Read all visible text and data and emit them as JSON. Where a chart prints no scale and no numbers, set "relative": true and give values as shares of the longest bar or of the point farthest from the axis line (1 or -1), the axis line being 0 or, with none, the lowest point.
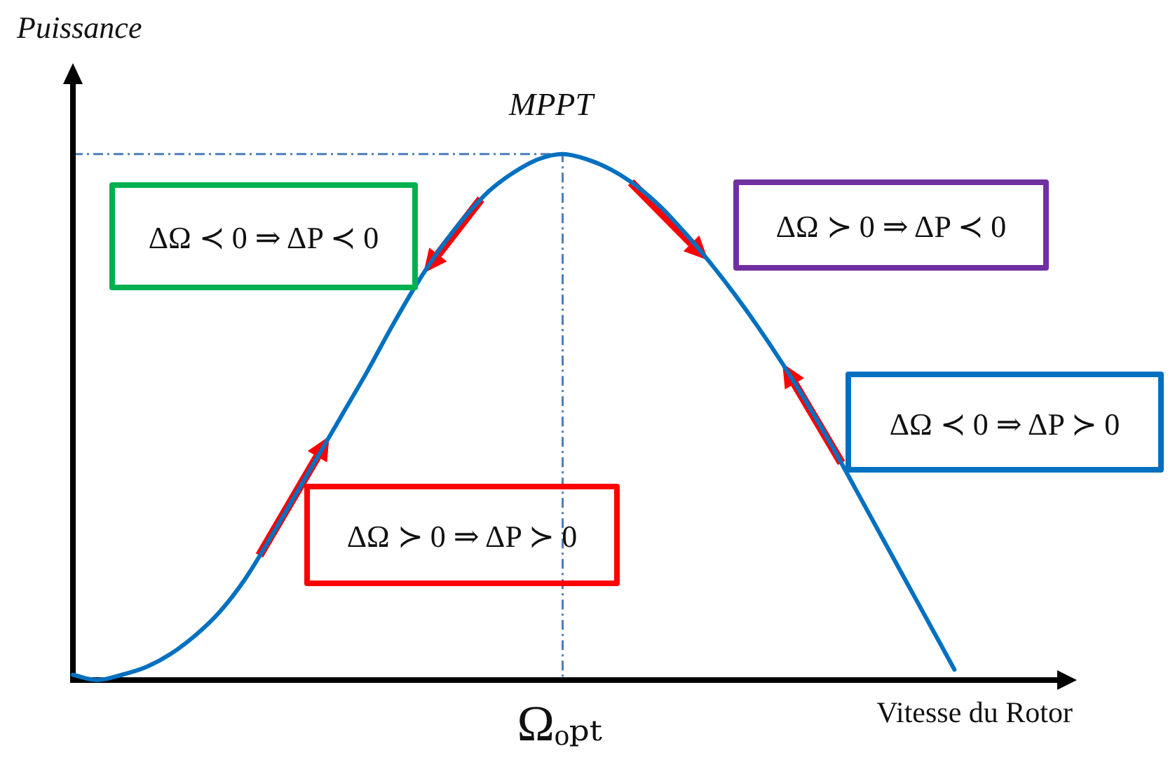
{
  "chart_data": {
    "type": "line",
    "relative": true,
    "xlabel": "Vitesse du Rotor",
    "ylabel": "Puissance",
    "categories": [
      null,
      null,
      null,
      null,
      null,
      null,
      null,
      null,
      null,
      null,
      null,
      null,
      null,
      null,
      null,
      null,
      null,
      null,
      null,
      null,
      null,
      null,
      null,
      null,
      null,
      null,
      null,
      null,
      null,
      null,
      null,
      null,
      null,
      null,
      null,
      null,
      null,
      null,
      null,
      null,
      null,
      null
    ],
    "series": [
      {
        "color": "#0070c0",
        "values": [
          0.01,
          0,
          0.01,
          0.025,
          0.05,
          0.085,
          0.13,
          0.19,
          0.265,
          0.345,
          0.425,
          0.505,
          0.585,
          0.67,
          0.75,
          0.82,
          0.88,
          0.93,
          0.965,
          0.99,
          1,
          0.99,
          0.97,
          0.94,
          0.9,
          0.85,
          0.795,
          0.735,
          0.67,
          0.6,
          0.525,
          0.445,
          0.36,
          0.275,
          0.19,
          0.105,
          0.02,
          null,
          null,
          null,
          null,
          null
        ]
      }
    ],
    "marker": "none",
    "ref_lines": [
      {
        "axis": "y",
        "value": 1,
        "color": "#4a7ebb",
        "line_style": "dashed"
      }
    ],
    "annotations": [
      "MPPT",
      "ΔΩ ≺ 0 ⇒ ΔP ≺ 0",
      "ΔΩ ≻ 0 ⇒ ΔP ≺ 0",
      "ΔΩ ≺ 0 ⇒ ΔP ≻ 0",
      "ΔΩ ≻ 0 ⇒ ΔP ≻ 0",
      "Ωₒₚₜ"
    ]
  }
}
